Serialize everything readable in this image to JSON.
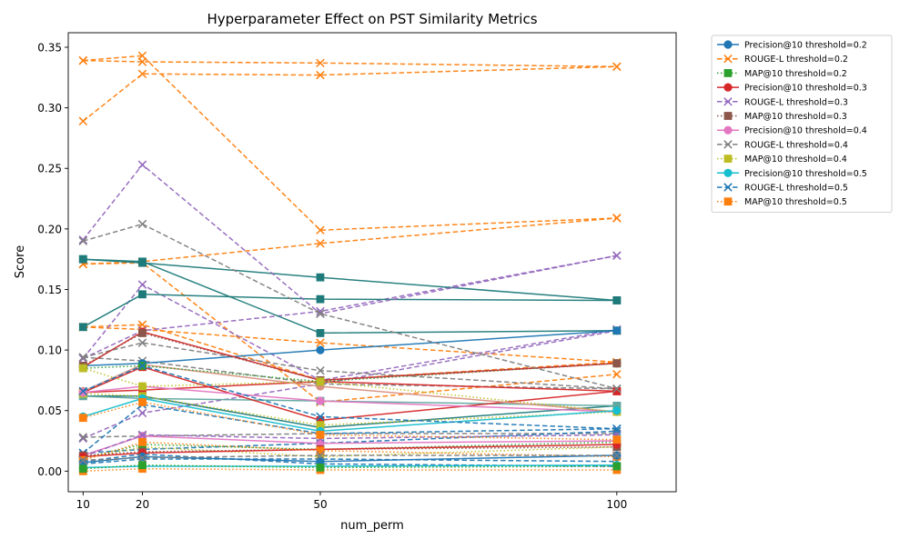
{
  "chart_data": {
    "type": "line",
    "title": "Hyperparameter Effect on PST Similarity Metrics",
    "xlabel": "num_perm",
    "ylabel": "Score",
    "x": [
      10,
      20,
      50,
      100
    ],
    "x_ticks": [
      "10",
      "20",
      "50",
      "100"
    ],
    "xlim": [
      7.5,
      110
    ],
    "ylim": [
      -0.017,
      0.362
    ],
    "y_ticks": [
      0.0,
      0.05,
      0.1,
      0.15,
      0.2,
      0.25,
      0.3,
      0.35
    ],
    "y_tick_labels": [
      "0.00",
      "0.05",
      "0.10",
      "0.15",
      "0.20",
      "0.25",
      "0.30",
      "0.35"
    ],
    "grid": false,
    "legend_position": "outside-right",
    "series": [
      {
        "name": "Precision@10 threshold=0.2",
        "color": "#1f77b4",
        "marker": "circle",
        "dash": "solid",
        "values": [
          0.087,
          0.089,
          0.1,
          0.116
        ]
      },
      {
        "name": "ROUGE-L threshold=0.2",
        "color": "#ff7f0e",
        "marker": "x",
        "dash": "dashed",
        "values": [
          0.339,
          0.343,
          0.199,
          0.209
        ]
      },
      {
        "name": "MAP@10 threshold=0.2",
        "color": "#2ca02c",
        "marker": "square",
        "dash": "dotted",
        "values": [
          0.085,
          0.087,
          0.074,
          0.089
        ]
      },
      {
        "name": "Precision@10 threshold=0.3",
        "color": "#d62728",
        "marker": "circle",
        "dash": "solid",
        "values": [
          0.086,
          0.115,
          0.075,
          0.089
        ]
      },
      {
        "name": "ROUGE-L threshold=0.3",
        "color": "#9467bd",
        "marker": "x",
        "dash": "dashed",
        "values": [
          0.191,
          0.253,
          0.13,
          0.178
        ]
      },
      {
        "name": "MAP@10 threshold=0.3",
        "color": "#8c564b",
        "marker": "square",
        "dash": "dotted",
        "values": [
          0.087,
          0.114,
          0.075,
          0.089
        ]
      },
      {
        "name": "Precision@10 threshold=0.4",
        "color": "#e377c2",
        "marker": "circle",
        "dash": "solid",
        "values": [
          0.065,
          0.07,
          0.058,
          0.049
        ]
      },
      {
        "name": "ROUGE-L threshold=0.4",
        "color": "#7f7f7f",
        "marker": "x",
        "dash": "dashed",
        "values": [
          0.19,
          0.204,
          0.13,
          0.068
        ]
      },
      {
        "name": "MAP@10 threshold=0.4",
        "color": "#bcbd22",
        "marker": "square",
        "dash": "dotted",
        "values": [
          0.085,
          0.07,
          0.074,
          0.049
        ]
      },
      {
        "name": "Precision@10 threshold=0.5",
        "color": "#17becf",
        "marker": "circle",
        "dash": "solid",
        "values": [
          0.045,
          0.06,
          0.033,
          0.05
        ]
      },
      {
        "name": "ROUGE-L threshold=0.5",
        "color": "#1f77b4",
        "marker": "x",
        "dash": "dashed",
        "values": [
          0.066,
          0.087,
          0.045,
          0.035
        ]
      },
      {
        "name": "MAP@10 threshold=0.5",
        "color": "#ff7f0e",
        "marker": "square",
        "dash": "dotted",
        "values": [
          0.044,
          0.057,
          0.03,
          0.026
        ]
      }
    ],
    "additional_lines": [
      {
        "color": "#ff7f0e",
        "marker": "x",
        "dash": "dashed",
        "values": [
          0.289,
          0.328,
          0.327,
          0.334
        ]
      },
      {
        "color": "#ff7f0e",
        "marker": "x",
        "dash": "dashed",
        "values": [
          0.339,
          0.338,
          0.337,
          0.334
        ]
      },
      {
        "color": "#ff7f0e",
        "marker": "x",
        "dash": "dashed",
        "values": [
          0.171,
          0.173,
          0.188,
          0.209
        ]
      },
      {
        "color": "#ff7f0e",
        "marker": "x",
        "dash": "dashed",
        "values": [
          0.171,
          0.172,
          0.057,
          0.08
        ]
      },
      {
        "color": "#ff7f0e",
        "marker": "x",
        "dash": "dashed",
        "values": [
          0.119,
          0.121,
          0.075,
          0.09
        ]
      },
      {
        "color": "#ff7f0e",
        "marker": "x",
        "dash": "dashed",
        "values": [
          0.119,
          0.117,
          0.106,
          0.09
        ]
      },
      {
        "color": "#9467bd",
        "marker": "x",
        "dash": "dashed",
        "values": [
          0.093,
          0.154,
          0.075,
          0.117
        ]
      },
      {
        "color": "#9467bd",
        "marker": "x",
        "dash": "dashed",
        "values": [
          0.093,
          0.116,
          0.132,
          0.178
        ]
      },
      {
        "color": "#9467bd",
        "marker": "x",
        "dash": "dashed",
        "values": [
          0.027,
          0.048,
          0.072,
          0.116
        ]
      },
      {
        "color": "#7f7f7f",
        "marker": "x",
        "dash": "dashed",
        "values": [
          0.094,
          0.106,
          0.083,
          0.068
        ]
      },
      {
        "color": "#7f7f7f",
        "marker": "x",
        "dash": "dashed",
        "values": [
          0.094,
          0.091,
          0.072,
          0.068
        ]
      },
      {
        "color": "#7f7f7f",
        "marker": "x",
        "dash": "dashed",
        "values": [
          0.028,
          0.029,
          0.031,
          0.031
        ]
      },
      {
        "color": "#1f77b4",
        "marker": "x",
        "dash": "dashed",
        "values": [
          0.015,
          0.055,
          0.031,
          0.035
        ]
      },
      {
        "color": "#1f77b4",
        "marker": "x",
        "dash": "dashed",
        "values": [
          0.015,
          0.018,
          0.023,
          0.033
        ]
      },
      {
        "color": "#1f77b4",
        "marker": "x",
        "dash": "dashed",
        "values": [
          0.006,
          0.01,
          0.01,
          0.008
        ]
      },
      {
        "color": "#1f77b4",
        "marker": "x",
        "dash": "dashed",
        "values": [
          0.008,
          0.014,
          0.006,
          0.004
        ]
      },
      {
        "color": "#1f7a7a",
        "marker": "square",
        "dash": "solid",
        "values": [
          0.175,
          0.173,
          0.114,
          0.116
        ]
      },
      {
        "color": "#1f7a7a",
        "marker": "square",
        "dash": "solid",
        "values": [
          0.175,
          0.172,
          0.16,
          0.141
        ]
      },
      {
        "color": "#1f7a7a",
        "marker": "square",
        "dash": "solid",
        "values": [
          0.119,
          0.146,
          0.142,
          0.141
        ]
      },
      {
        "color": "#1f7a7a",
        "marker": "square",
        "dash": "solid",
        "values": [
          0.062,
          0.062,
          0.036,
          0.054
        ]
      },
      {
        "color": "#5fa8a0",
        "marker": "square",
        "dash": "solid",
        "values": [
          0.062,
          0.06,
          0.058,
          0.054
        ]
      },
      {
        "color": "#d62728",
        "marker": "square",
        "dash": "solid",
        "values": [
          0.065,
          0.086,
          0.042,
          0.066
        ]
      },
      {
        "color": "#d62728",
        "marker": "square",
        "dash": "solid",
        "values": [
          0.065,
          0.067,
          0.074,
          0.066
        ]
      },
      {
        "color": "#d99080",
        "marker": "circle",
        "dash": "solid",
        "values": [
          0.066,
          0.088,
          0.07,
          0.049
        ]
      },
      {
        "color": "#e377c2",
        "marker": "circle",
        "dash": "solid",
        "values": [
          0.013,
          0.029,
          0.023,
          0.025
        ]
      },
      {
        "color": "#9467bd",
        "marker": "x",
        "dash": "dashed",
        "values": [
          0.012,
          0.03,
          0.027,
          0.03
        ]
      },
      {
        "color": "#bcbd22",
        "marker": "square",
        "dash": "dotted",
        "values": [
          0.064,
          0.062,
          0.038,
          0.049
        ]
      },
      {
        "color": "#bcbd22",
        "marker": "square",
        "dash": "dotted",
        "values": [
          0.01,
          0.02,
          0.012,
          0.02
        ]
      },
      {
        "color": "#2ca02c",
        "marker": "square",
        "dash": "dotted",
        "values": [
          0.011,
          0.022,
          0.018,
          0.024
        ]
      },
      {
        "color": "#8c564b",
        "marker": "square",
        "dash": "dotted",
        "values": [
          0.013,
          0.016,
          0.018,
          0.02
        ]
      },
      {
        "color": "#17becf",
        "marker": "circle",
        "dash": "solid",
        "values": [
          0.003,
          0.004,
          0.004,
          0.005
        ]
      },
      {
        "color": "#d62728",
        "marker": "circle",
        "dash": "solid",
        "values": [
          0.012,
          0.015,
          0.018,
          0.022
        ]
      },
      {
        "color": "#ff7f0e",
        "marker": "square",
        "dash": "dotted",
        "values": [
          0.009,
          0.024,
          0.017,
          0.012
        ]
      },
      {
        "color": "#ff7f0e",
        "marker": "square",
        "dash": "dotted",
        "values": [
          0.0,
          0.002,
          0.001,
          0.001
        ]
      },
      {
        "color": "#1f77b4",
        "marker": "circle",
        "dash": "solid",
        "values": [
          0.007,
          0.012,
          0.008,
          0.013
        ]
      },
      {
        "color": "#2ca02c",
        "marker": "square",
        "dash": "dotted",
        "values": [
          0.002,
          0.005,
          0.003,
          0.004
        ]
      },
      {
        "color": "#7f7f7f",
        "marker": "x",
        "dash": "dashed",
        "values": [
          0.009,
          0.011,
          0.013,
          0.013
        ]
      }
    ]
  }
}
